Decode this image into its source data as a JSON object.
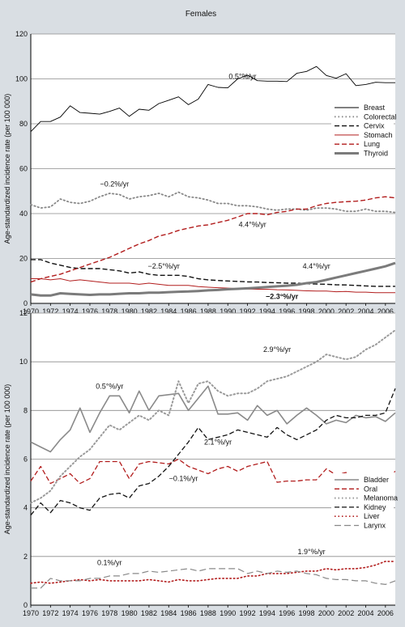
{
  "figure": {
    "title": "Females",
    "background": "#d9dee3"
  },
  "chart_data": [
    {
      "type": "line",
      "ylabel": "Age-standardized incidence rate (per 100 000)",
      "ylim": [
        0,
        120
      ],
      "yticks": [
        0,
        20,
        40,
        60,
        80,
        100,
        120
      ],
      "xlim": [
        1970,
        2007
      ],
      "xticks": [
        "1970",
        "1972",
        "1974",
        "1976",
        "1978",
        "1980",
        "1982",
        "1984",
        "1986",
        "1988",
        "1990",
        "1992",
        "1994",
        "1996",
        "1998",
        "2000",
        "2002",
        "2004",
        "2006"
      ],
      "grid": "horizontal",
      "legend_position": "right",
      "x": [
        1970,
        1971,
        1972,
        1973,
        1974,
        1975,
        1976,
        1977,
        1978,
        1979,
        1980,
        1981,
        1982,
        1983,
        1984,
        1985,
        1986,
        1987,
        1988,
        1989,
        1990,
        1991,
        1992,
        1993,
        1994,
        1995,
        1996,
        1997,
        1998,
        1999,
        2000,
        2001,
        2002,
        2003,
        2004,
        2005,
        2006,
        2007
      ],
      "series": [
        {
          "name": "Breast",
          "color": "#000000",
          "style": "solid",
          "width": 0.9,
          "values": [
            76.5,
            81,
            81,
            83,
            88,
            85,
            84.7,
            84.3,
            85.5,
            87,
            83.3,
            86.5,
            86,
            89,
            90.5,
            92,
            88.5,
            91,
            97.5,
            96.2,
            96,
            100,
            101.7,
            99.2,
            99,
            99,
            98.8,
            102.5,
            103.3,
            105.5,
            101.5,
            100.3,
            102.3,
            97,
            97.5,
            98.5,
            98.3,
            98.3
          ]
        },
        {
          "name": "Colorectal",
          "color": "#888888",
          "style": "dotted",
          "width": 1.8,
          "values": [
            44,
            42.5,
            43,
            46.5,
            45,
            44.5,
            45.5,
            47.5,
            49,
            48.5,
            46.5,
            47.5,
            48,
            49,
            47.5,
            49.5,
            47.5,
            47,
            46,
            44.5,
            44.5,
            43.5,
            43.5,
            43,
            42,
            41.5,
            42,
            42,
            41.5,
            42.5,
            42.5,
            42,
            41,
            41,
            42,
            41,
            41,
            40.5
          ]
        },
        {
          "name": "Cervix",
          "color": "#111111",
          "style": "dashed",
          "width": 1.4,
          "values": [
            19.5,
            19.5,
            18,
            17,
            16,
            15.5,
            15.5,
            15.5,
            15,
            14.5,
            13.5,
            14,
            13,
            12.5,
            12.5,
            12.5,
            12,
            11,
            10.5,
            10.2,
            10,
            9.8,
            9.6,
            9.5,
            9.3,
            9.2,
            9,
            9,
            8.8,
            8.6,
            8.5,
            8.3,
            8.2,
            8,
            7.8,
            7.6,
            7.6,
            7.6
          ]
        },
        {
          "name": "Stomach",
          "color": "#b21d1d",
          "style": "solid",
          "width": 1,
          "values": [
            11,
            11,
            10.5,
            11,
            10,
            10.5,
            10,
            9.5,
            9,
            9,
            9,
            8.5,
            9,
            8.5,
            8,
            8,
            8,
            7.5,
            7.2,
            7,
            6.8,
            6.6,
            6.4,
            6.3,
            6.3,
            6.1,
            6,
            5.8,
            5.6,
            5.5,
            5.5,
            5.2,
            5.3,
            5,
            5,
            4.8,
            4.8,
            4.8
          ]
        },
        {
          "name": "Lung",
          "color": "#b21d1d",
          "style": "dashed",
          "width": 1.4,
          "values": [
            9.5,
            11,
            12,
            13,
            14.5,
            16,
            17.5,
            19,
            20.5,
            22.5,
            24.5,
            26.5,
            28,
            30,
            31,
            32.5,
            33.5,
            34.5,
            35,
            36,
            37,
            38.5,
            40,
            40,
            39.5,
            40.5,
            41,
            42,
            42,
            43.5,
            44.5,
            45,
            45.3,
            45.5,
            46,
            47,
            47.5,
            47
          ]
        },
        {
          "name": "Thyroid",
          "color": "#7b7b7b",
          "style": "solid",
          "width": 3,
          "values": [
            4,
            3.5,
            3.5,
            4.5,
            4.2,
            4,
            3.8,
            4,
            4,
            4.3,
            4.5,
            4.5,
            4.8,
            4.8,
            5,
            5.2,
            5.3,
            5.5,
            5.8,
            6,
            6.3,
            6.5,
            6.7,
            7,
            7.3,
            7.6,
            7.9,
            8.3,
            9,
            9.5,
            10.5,
            11.5,
            12.5,
            13.5,
            14.5,
            15.5,
            16.5,
            18
          ]
        }
      ],
      "annotations": [
        {
          "text": "0.5°%/yr",
          "x": 1991.5,
          "y": 100,
          "bold": false
        },
        {
          "text": "−0.2%/yr",
          "x": 1978.5,
          "y": 52,
          "bold": false
        },
        {
          "text": "4.4°%/yr",
          "x": 1992.5,
          "y": 34,
          "bold": false
        },
        {
          "text": "−2.5°%/yr",
          "x": 1983.5,
          "y": 15.5,
          "bold": false
        },
        {
          "text": "4.4°%/yr",
          "x": 1999,
          "y": 15.5,
          "bold": false
        },
        {
          "text": "−2.3°%/yr",
          "x": 1995.5,
          "y": 2,
          "bold": true
        }
      ]
    },
    {
      "type": "line",
      "ylabel": "Age-standardized incidence rate (per 100 000)",
      "ylim": [
        0,
        12
      ],
      "yticks": [
        0,
        2,
        4,
        6,
        8,
        10,
        12
      ],
      "xlim": [
        1970,
        2007
      ],
      "xticks": [
        "1970",
        "1972",
        "1974",
        "1976",
        "1978",
        "1980",
        "1982",
        "1984",
        "1986",
        "1988",
        "1990",
        "1992",
        "1994",
        "1996",
        "1998",
        "2000",
        "2002",
        "2004",
        "2006"
      ],
      "grid": "horizontal",
      "legend_position": "right",
      "x": [
        1970,
        1971,
        1972,
        1973,
        1974,
        1975,
        1976,
        1977,
        1978,
        1979,
        1980,
        1981,
        1982,
        1983,
        1984,
        1985,
        1986,
        1987,
        1988,
        1989,
        1990,
        1991,
        1992,
        1993,
        1994,
        1995,
        1996,
        1997,
        1998,
        1999,
        2000,
        2001,
        2002,
        2003,
        2004,
        2005,
        2006,
        2007
      ],
      "series": [
        {
          "name": "Bladder",
          "color": "#8a8a8a",
          "style": "solid",
          "width": 1.6,
          "values": [
            6.7,
            6.5,
            6.3,
            6.8,
            7.2,
            8.1,
            7.1,
            7.9,
            8.6,
            8.6,
            7.9,
            8.8,
            8,
            8.6,
            8.65,
            8.7,
            8,
            8.5,
            9,
            7.85,
            7.85,
            7.9,
            7.6,
            8.2,
            7.8,
            8,
            7.45,
            7.8,
            8.1,
            7.8,
            7.45,
            7.6,
            7.5,
            7.8,
            7.7,
            7.75,
            7.55,
            7.9
          ]
        },
        {
          "name": "Oral",
          "color": "#b21d1d",
          "style": "dashed",
          "width": 1.3,
          "values": [
            5.1,
            5.7,
            5,
            5.2,
            5.4,
            5,
            5.2,
            5.9,
            5.9,
            5.9,
            5.2,
            5.8,
            5.9,
            5.85,
            5.8,
            6,
            5.7,
            5.55,
            5.4,
            5.6,
            5.7,
            5.5,
            5.7,
            5.8,
            5.9,
            5.05,
            5.1,
            5.1,
            5.15,
            5.15,
            5.6,
            5.35,
            5.45,
            5.1,
            5.25,
            5.25,
            5.2,
            5.5
          ]
        },
        {
          "name": "Melanoma",
          "color": "#9a9a9a",
          "style": "dotted",
          "width": 2,
          "values": [
            4.2,
            4.4,
            4.7,
            5.3,
            5.7,
            6.1,
            6.4,
            6.9,
            7.4,
            7.2,
            7.5,
            7.8,
            7.6,
            8,
            7.8,
            9.2,
            8.3,
            9.1,
            9.2,
            8.8,
            8.6,
            8.7,
            8.7,
            8.9,
            9.2,
            9.3,
            9.4,
            9.6,
            9.8,
            10,
            10.3,
            10.2,
            10.1,
            10.2,
            10.5,
            10.7,
            11,
            11.3
          ]
        },
        {
          "name": "Kidney",
          "color": "#111111",
          "style": "dashed",
          "width": 1.3,
          "values": [
            3.7,
            4.2,
            3.8,
            4.3,
            4.2,
            4,
            3.9,
            4.4,
            4.55,
            4.6,
            4.4,
            4.9,
            5,
            5.3,
            5.7,
            6.2,
            6.7,
            7.3,
            6.8,
            6.9,
            7,
            7.2,
            7.1,
            7,
            6.9,
            7.3,
            7,
            6.8,
            7,
            7.2,
            7.6,
            7.8,
            7.7,
            7.7,
            7.8,
            7.8,
            7.9,
            8.9
          ]
        },
        {
          "name": "Liver",
          "color": "#b21d1d",
          "style": "dotted",
          "width": 1.6,
          "values": [
            0.9,
            0.95,
            0.9,
            0.95,
            1,
            1.05,
            1,
            1.05,
            1,
            1,
            1,
            1,
            1.05,
            1,
            0.95,
            1.05,
            1,
            1,
            1.05,
            1.1,
            1.1,
            1.1,
            1.2,
            1.2,
            1.3,
            1.3,
            1.3,
            1.35,
            1.4,
            1.4,
            1.5,
            1.45,
            1.5,
            1.5,
            1.55,
            1.65,
            1.8,
            1.8
          ]
        },
        {
          "name": "Larynx",
          "color": "#888888",
          "style": "longdash",
          "width": 1.2,
          "values": [
            0.7,
            0.7,
            1.1,
            1,
            1,
            1,
            1.1,
            1.1,
            1.2,
            1.2,
            1.3,
            1.3,
            1.4,
            1.35,
            1.4,
            1.45,
            1.5,
            1.4,
            1.5,
            1.5,
            1.5,
            1.5,
            1.3,
            1.4,
            1.3,
            1.4,
            1.35,
            1.4,
            1.3,
            1.25,
            1.1,
            1.05,
            1.05,
            1,
            1,
            0.9,
            0.85,
            1
          ]
        }
      ],
      "annotations": [
        {
          "text": "0.5°%/yr",
          "x": 1978,
          "y": 8.9,
          "bold": false
        },
        {
          "text": "2.9°%/yr",
          "x": 1995,
          "y": 10.4,
          "bold": false
        },
        {
          "text": "2.1°%/yr",
          "x": 1989,
          "y": 6.6,
          "bold": false
        },
        {
          "text": "−0.1%/yr",
          "x": 1985.5,
          "y": 5.1,
          "bold": false
        },
        {
          "text": "0.1%/yr",
          "x": 1978,
          "y": 1.65,
          "bold": false
        },
        {
          "text": "1.9°%/yr",
          "x": 1998.5,
          "y": 2.1,
          "bold": false
        }
      ]
    }
  ]
}
